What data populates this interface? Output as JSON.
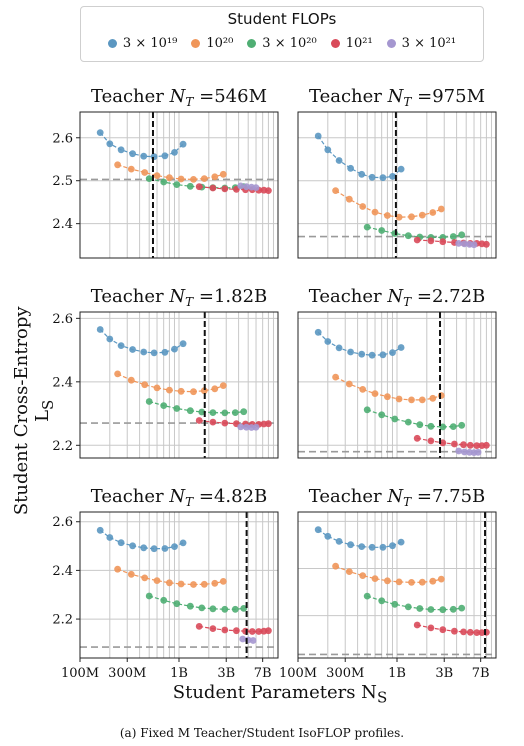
{
  "legend": {
    "title": "Student FLOPs",
    "items": [
      {
        "label": "3 × 10¹⁹",
        "color": "#5b97c1"
      },
      {
        "label": "10²⁰",
        "color": "#f0965a"
      },
      {
        "label": "3 × 10²⁰",
        "color": "#4fae73"
      },
      {
        "label": "10²¹",
        "color": "#d94a5a"
      },
      {
        "label": "3 × 10²¹",
        "color": "#a597d0"
      }
    ]
  },
  "y_axis_label": "Student Cross-Entropy L",
  "y_axis_sub": "S",
  "x_axis_label": "Student Parameters N",
  "x_axis_sub": "S",
  "caption": "(a) Fixed M Teacher/Student IsoFLOP profiles.",
  "x_ticks": [
    {
      "value": 100000000,
      "label": "100M"
    },
    {
      "value": 300000000,
      "label": "300M"
    },
    {
      "value": 1000000000,
      "label": "1B"
    },
    {
      "value": 3000000000,
      "label": "3B"
    },
    {
      "value": 7000000000,
      "label": "7B"
    }
  ],
  "chart_data": [
    {
      "type": "scatter",
      "title": "Teacher N_T =546M",
      "teacher_label": "546M",
      "xscale": "log",
      "xlim": [
        100000000,
        10000000000
      ],
      "ylim": [
        2.32,
        2.66
      ],
      "yticks": [
        2.4,
        2.5,
        2.6
      ],
      "teacher_params": 546000000,
      "teacher_loss": 2.503,
      "series": [
        {
          "flops": "3 × 10¹⁹",
          "x": [
            160000000,
            200000000,
            260000000,
            340000000,
            440000000,
            560000000,
            720000000,
            900000000,
            1100000000
          ],
          "y": [
            2.612,
            2.586,
            2.572,
            2.563,
            2.557,
            2.556,
            2.558,
            2.566,
            2.585
          ]
        },
        {
          "flops": "10²⁰",
          "x": [
            240000000,
            330000000,
            450000000,
            600000000,
            800000000,
            1050000000,
            1400000000,
            1800000000,
            2300000000,
            2800000000
          ],
          "y": [
            2.537,
            2.527,
            2.519,
            2.512,
            2.507,
            2.504,
            2.503,
            2.505,
            2.509,
            2.515
          ]
        },
        {
          "flops": "3 × 10²⁰",
          "x": [
            500000000,
            700000000,
            950000000,
            1300000000,
            1700000000,
            2200000000,
            2900000000,
            3700000000,
            4500000000
          ],
          "y": [
            2.505,
            2.497,
            2.491,
            2.487,
            2.485,
            2.484,
            2.483,
            2.484,
            2.486
          ]
        },
        {
          "flops": "10²¹",
          "x": [
            1600000000,
            2200000000,
            2900000000,
            3800000000,
            4700000000,
            5500000000,
            6400000000,
            7200000000,
            8000000000
          ],
          "y": [
            2.486,
            2.483,
            2.481,
            2.48,
            2.479,
            2.479,
            2.478,
            2.478,
            2.477
          ]
        },
        {
          "flops": "3 × 10²¹",
          "x": [
            4200000000,
            4800000000,
            5400000000,
            6000000000
          ],
          "y": [
            2.488,
            2.486,
            2.485,
            2.484
          ]
        }
      ]
    },
    {
      "type": "scatter",
      "title": "Teacher N_T =975M",
      "teacher_label": "975M",
      "xscale": "log",
      "xlim": [
        100000000,
        10000000000
      ],
      "ylim": [
        2.32,
        2.66
      ],
      "yticks": [
        2.4,
        2.5,
        2.6
      ],
      "teacher_params": 975000000,
      "teacher_loss": 2.37,
      "series": [
        {
          "flops": "3 × 10¹⁹",
          "x": [
            160000000,
            200000000,
            260000000,
            340000000,
            440000000,
            560000000,
            720000000,
            900000000,
            1100000000
          ],
          "y": [
            2.604,
            2.572,
            2.547,
            2.529,
            2.515,
            2.508,
            2.507,
            2.51,
            2.527
          ]
        },
        {
          "flops": "10²⁰",
          "x": [
            240000000,
            330000000,
            450000000,
            600000000,
            800000000,
            1050000000,
            1400000000,
            1800000000,
            2300000000,
            2800000000
          ],
          "y": [
            2.477,
            2.457,
            2.44,
            2.427,
            2.419,
            2.415,
            2.416,
            2.42,
            2.426,
            2.434
          ]
        },
        {
          "flops": "3 × 10²⁰",
          "x": [
            500000000,
            700000000,
            950000000,
            1300000000,
            1700000000,
            2200000000,
            2900000000,
            3700000000,
            4500000000
          ],
          "y": [
            2.392,
            2.384,
            2.377,
            2.372,
            2.369,
            2.368,
            2.368,
            2.37,
            2.374
          ]
        },
        {
          "flops": "10²¹",
          "x": [
            1600000000,
            2200000000,
            2900000000,
            3800000000,
            4700000000,
            5500000000,
            6400000000,
            7200000000,
            8000000000
          ],
          "y": [
            2.362,
            2.36,
            2.358,
            2.356,
            2.355,
            2.354,
            2.354,
            2.353,
            2.352
          ]
        },
        {
          "flops": "3 × 10²¹",
          "x": [
            4200000000,
            4800000000,
            5400000000,
            6000000000
          ],
          "y": [
            2.354,
            2.353,
            2.352,
            2.351
          ]
        }
      ]
    },
    {
      "type": "scatter",
      "title": "Teacher N_T =1.82B",
      "teacher_label": "1.82B",
      "xscale": "log",
      "xlim": [
        100000000,
        10000000000
      ],
      "ylim": [
        2.16,
        2.62
      ],
      "yticks": [
        2.2,
        2.4,
        2.6
      ],
      "teacher_params": 1820000000,
      "teacher_loss": 2.27,
      "series": [
        {
          "flops": "3 × 10¹⁹",
          "x": [
            160000000,
            200000000,
            260000000,
            340000000,
            440000000,
            560000000,
            720000000,
            900000000,
            1100000000
          ],
          "y": [
            2.565,
            2.535,
            2.514,
            2.502,
            2.494,
            2.491,
            2.493,
            2.503,
            2.52
          ]
        },
        {
          "flops": "10²⁰",
          "x": [
            240000000,
            330000000,
            450000000,
            600000000,
            800000000,
            1050000000,
            1400000000,
            1800000000,
            2300000000,
            2800000000
          ],
          "y": [
            2.425,
            2.405,
            2.391,
            2.381,
            2.374,
            2.37,
            2.369,
            2.372,
            2.378,
            2.388
          ]
        },
        {
          "flops": "3 × 10²⁰",
          "x": [
            500000000,
            700000000,
            950000000,
            1300000000,
            1700000000,
            2200000000,
            2900000000,
            3700000000,
            4500000000
          ],
          "y": [
            2.338,
            2.325,
            2.316,
            2.309,
            2.305,
            2.303,
            2.302,
            2.303,
            2.306
          ]
        },
        {
          "flops": "10²¹",
          "x": [
            1600000000,
            2200000000,
            2900000000,
            3800000000,
            4700000000,
            5500000000,
            6400000000,
            7200000000,
            8000000000
          ],
          "y": [
            2.278,
            2.273,
            2.27,
            2.268,
            2.267,
            2.266,
            2.266,
            2.267,
            2.268
          ]
        },
        {
          "flops": "3 × 10²¹",
          "x": [
            4200000000,
            4800000000,
            5400000000,
            6000000000
          ],
          "y": [
            2.258,
            2.257,
            2.256,
            2.257
          ]
        }
      ]
    },
    {
      "type": "scatter",
      "title": "Teacher N_T =2.72B",
      "teacher_label": "2.72B",
      "xscale": "log",
      "xlim": [
        100000000,
        10000000000
      ],
      "ylim": [
        2.16,
        2.62
      ],
      "yticks": [
        2.2,
        2.4,
        2.6
      ],
      "teacher_params": 2720000000,
      "teacher_loss": 2.18,
      "series": [
        {
          "flops": "3 × 10¹⁹",
          "x": [
            160000000,
            200000000,
            260000000,
            340000000,
            440000000,
            560000000,
            720000000,
            900000000,
            1100000000
          ],
          "y": [
            2.556,
            2.527,
            2.507,
            2.494,
            2.487,
            2.484,
            2.485,
            2.492,
            2.508
          ]
        },
        {
          "flops": "10²⁰",
          "x": [
            240000000,
            330000000,
            450000000,
            600000000,
            800000000,
            1050000000,
            1400000000,
            1800000000,
            2300000000,
            2800000000
          ],
          "y": [
            2.415,
            2.393,
            2.376,
            2.363,
            2.353,
            2.346,
            2.343,
            2.343,
            2.348,
            2.357
          ]
        },
        {
          "flops": "3 × 10²⁰",
          "x": [
            500000000,
            700000000,
            950000000,
            1300000000,
            1700000000,
            2200000000,
            2900000000,
            3700000000,
            4500000000
          ],
          "y": [
            2.312,
            2.296,
            2.283,
            2.273,
            2.265,
            2.26,
            2.258,
            2.259,
            2.263
          ]
        },
        {
          "flops": "10²¹",
          "x": [
            1600000000,
            2200000000,
            2900000000,
            3800000000,
            4700000000,
            5500000000,
            6400000000,
            7200000000,
            8000000000
          ],
          "y": [
            2.222,
            2.214,
            2.208,
            2.204,
            2.202,
            2.2,
            2.199,
            2.199,
            2.2
          ]
        },
        {
          "flops": "3 × 10²¹",
          "x": [
            4200000000,
            4800000000,
            5400000000,
            6000000000,
            6600000000
          ],
          "y": [
            2.182,
            2.179,
            2.178,
            2.177,
            2.178
          ]
        }
      ]
    },
    {
      "type": "scatter",
      "title": "Teacher N_T =4.82B",
      "teacher_label": "4.82B",
      "xscale": "log",
      "xlim": [
        100000000,
        10000000000
      ],
      "ylim": [
        2.04,
        2.64
      ],
      "yticks": [
        2.2,
        2.4,
        2.6
      ],
      "teacher_params": 4820000000,
      "teacher_loss": 2.085,
      "series": [
        {
          "flops": "3 × 10¹⁹",
          "x": [
            160000000,
            200000000,
            260000000,
            340000000,
            440000000,
            560000000,
            720000000,
            900000000,
            1100000000
          ],
          "y": [
            2.565,
            2.535,
            2.514,
            2.501,
            2.493,
            2.489,
            2.49,
            2.498,
            2.513
          ]
        },
        {
          "flops": "10²⁰",
          "x": [
            240000000,
            330000000,
            450000000,
            600000000,
            800000000,
            1050000000,
            1400000000,
            1800000000,
            2300000000,
            2800000000
          ],
          "y": [
            2.405,
            2.384,
            2.369,
            2.358,
            2.349,
            2.344,
            2.342,
            2.343,
            2.347,
            2.355
          ]
        },
        {
          "flops": "3 × 10²⁰",
          "x": [
            500000000,
            700000000,
            950000000,
            1300000000,
            1700000000,
            2200000000,
            2900000000,
            3700000000,
            4500000000
          ],
          "y": [
            2.295,
            2.277,
            2.263,
            2.253,
            2.246,
            2.242,
            2.24,
            2.24,
            2.244
          ]
        },
        {
          "flops": "10²¹",
          "x": [
            1600000000,
            2200000000,
            2900000000,
            3800000000,
            4700000000,
            5500000000,
            6400000000,
            7200000000,
            8000000000
          ],
          "y": [
            2.17,
            2.161,
            2.155,
            2.152,
            2.15,
            2.149,
            2.149,
            2.15,
            2.152
          ]
        },
        {
          "flops": "3 × 10²¹",
          "x": [
            4400000000,
            5000000000,
            5600000000
          ],
          "y": [
            2.118,
            2.114,
            2.112
          ]
        }
      ]
    },
    {
      "type": "scatter",
      "title": "Teacher N_T =7.75B",
      "teacher_label": "7.75B",
      "xscale": "log",
      "xlim": [
        100000000,
        10000000000
      ],
      "ylim": [
        2.02,
        2.64
      ],
      "yticks": [
        2.2,
        2.4,
        2.6
      ],
      "teacher_params": 7750000000,
      "teacher_loss": 2.035,
      "series": [
        {
          "flops": "3 × 10¹⁹",
          "x": [
            160000000,
            200000000,
            260000000,
            340000000,
            440000000,
            560000000,
            720000000,
            900000000,
            1100000000
          ],
          "y": [
            2.565,
            2.537,
            2.515,
            2.501,
            2.493,
            2.49,
            2.49,
            2.497,
            2.512
          ]
        },
        {
          "flops": "10²⁰",
          "x": [
            240000000,
            330000000,
            450000000,
            600000000,
            800000000,
            1050000000,
            1400000000,
            1800000000,
            2300000000,
            2800000000
          ],
          "y": [
            2.41,
            2.387,
            2.37,
            2.357,
            2.348,
            2.343,
            2.341,
            2.342,
            2.346,
            2.355
          ]
        },
        {
          "flops": "3 × 10²⁰",
          "x": [
            500000000,
            700000000,
            950000000,
            1300000000,
            1700000000,
            2200000000,
            2900000000,
            3700000000,
            4500000000
          ],
          "y": [
            2.283,
            2.263,
            2.248,
            2.237,
            2.23,
            2.226,
            2.225,
            2.227,
            2.232
          ]
        },
        {
          "flops": "10²¹",
          "x": [
            1600000000,
            2200000000,
            2900000000,
            3800000000,
            4700000000,
            5500000000,
            6400000000,
            7200000000,
            8000000000
          ],
          "y": [
            2.16,
            2.148,
            2.14,
            2.134,
            2.131,
            2.129,
            2.128,
            2.128,
            2.129
          ]
        }
      ]
    }
  ]
}
